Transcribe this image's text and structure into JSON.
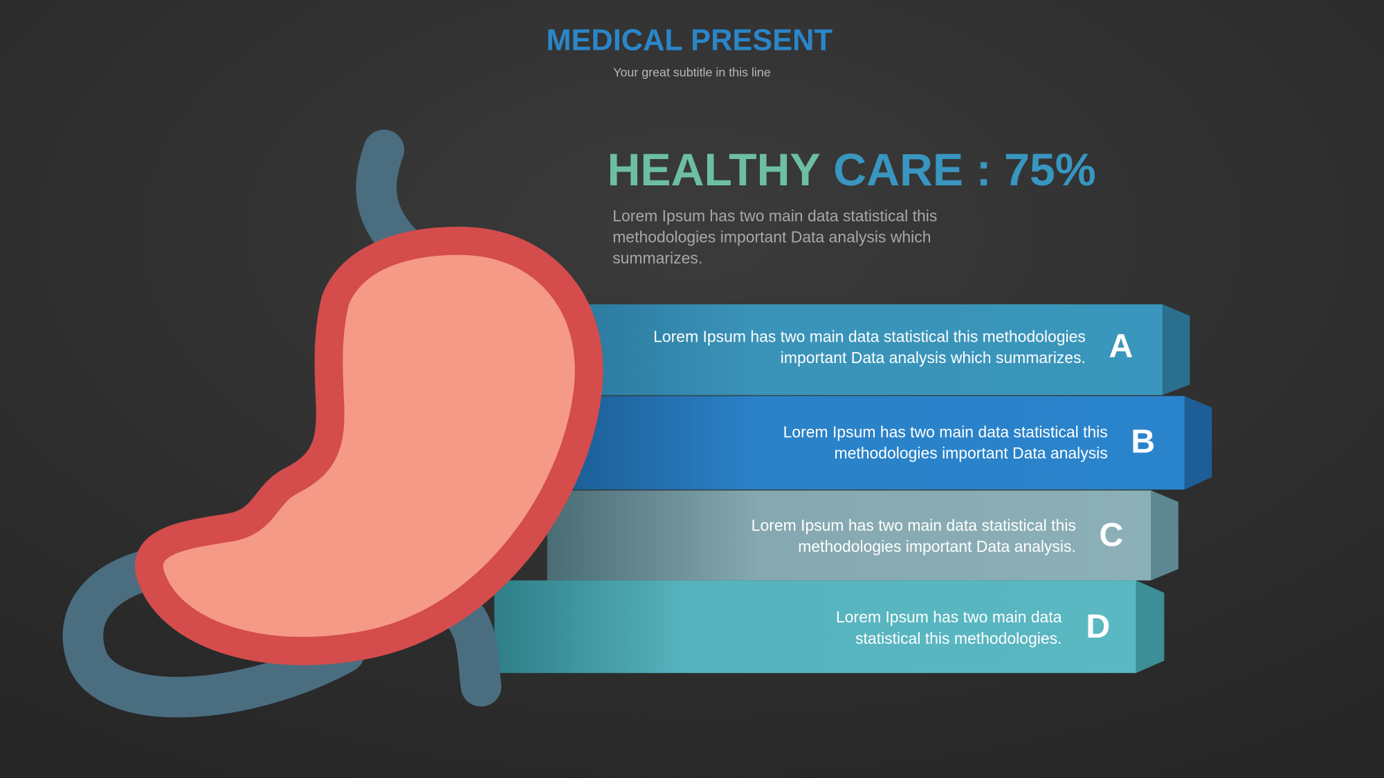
{
  "header": {
    "title": "MEDICAL PRESENT",
    "subtitle": "Your great subtitle in this line"
  },
  "headline": {
    "part1": "HEALTHY",
    "part2": "CARE : 75%",
    "description": [
      "Lorem Ipsum has two main data statistical this",
      "methodologies important Data analysis which",
      "summarizes."
    ]
  },
  "items": [
    {
      "letter": "A",
      "lines": [
        "Lorem Ipsum has two main data statistical this methodologies",
        "important Data analysis which summarizes."
      ]
    },
    {
      "letter": "B",
      "lines": [
        "Lorem Ipsum has two main data statistical this",
        "methodologies important Data analysis"
      ]
    },
    {
      "letter": "C",
      "lines": [
        "Lorem Ipsum has two main data statistical this",
        "methodologies important Data analysis."
      ]
    },
    {
      "letter": "D",
      "lines": [
        "Lorem Ipsum has two main data",
        "statistical this methodologies."
      ]
    }
  ]
}
